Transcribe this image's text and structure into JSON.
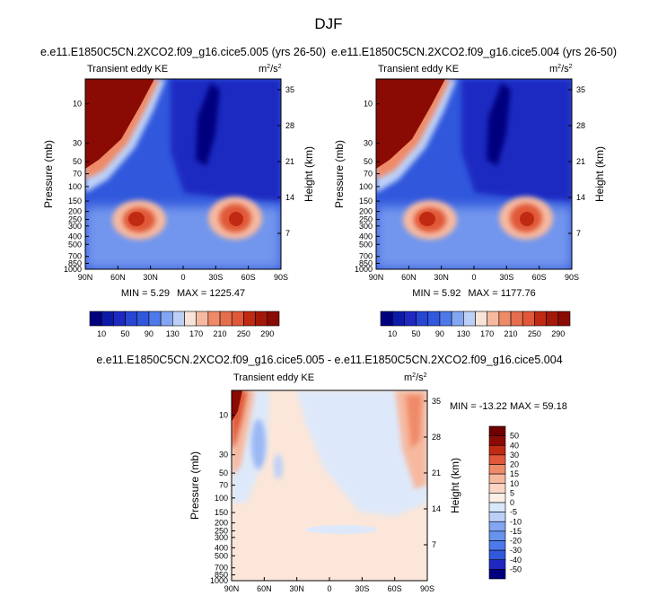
{
  "chart_data": [
    {
      "type": "heatmap",
      "subtitle": "e.e11.E1850C5CN.2XCO2.f09_g16.cice5.005 (yrs 26-50)",
      "left_label": "Transient eddy KE",
      "units_base": "m",
      "units_sup1": "2",
      "units_slash": "/s",
      "units_sup2": "2",
      "ylabel": "Pressure (mb)",
      "ylabel_right": "Height (km)",
      "x_ticks": [
        "90N",
        "60N",
        "30N",
        "0",
        "30S",
        "60S",
        "90S"
      ],
      "x_range": [
        90,
        -90
      ],
      "pressure_ticks": [
        "10",
        "30",
        "50",
        "70",
        "100",
        "150",
        "200",
        "250",
        "300",
        "400",
        "500",
        "700",
        "850",
        "1000"
      ],
      "height_ticks": [
        "35",
        "28",
        "21",
        "14",
        "7"
      ],
      "y_range_mb": [
        5,
        1000
      ],
      "min_label": "MIN =  5.29",
      "max_label": "MAX = 1225.47",
      "min": 5.29,
      "max": 1225.47,
      "colorbar_ticks": [
        "10",
        "50",
        "90",
        "130",
        "170",
        "210",
        "250",
        "290"
      ],
      "colorbar_orientation": "horizontal",
      "features": [
        {
          "kind": "polar night jet maximum",
          "lat": 90,
          "p_mb": 5,
          "value": 300
        },
        {
          "kind": "tropospheric jet maximum",
          "lat": 40,
          "p_mb": 250,
          "value": 250
        },
        {
          "kind": "tropospheric jet maximum",
          "lat": -50,
          "p_mb": 250,
          "value": 270
        }
      ]
    },
    {
      "type": "heatmap",
      "subtitle": "e.e11.E1850C5CN.2XCO2.f09_g16.cice5.004 (yrs 26-50)",
      "left_label": "Transient eddy KE",
      "units_base": "m",
      "units_sup1": "2",
      "units_slash": "/s",
      "units_sup2": "2",
      "ylabel": "Pressure (mb)",
      "ylabel_right": "Height (km)",
      "x_ticks": [
        "90N",
        "60N",
        "30N",
        "0",
        "30S",
        "60S",
        "90S"
      ],
      "x_range": [
        90,
        -90
      ],
      "pressure_ticks": [
        "10",
        "30",
        "50",
        "70",
        "100",
        "150",
        "200",
        "250",
        "300",
        "400",
        "500",
        "700",
        "850",
        "1000"
      ],
      "height_ticks": [
        "35",
        "28",
        "21",
        "14",
        "7"
      ],
      "y_range_mb": [
        5,
        1000
      ],
      "min_label": "MIN =  5.92",
      "max_label": "MAX = 1177.76",
      "min": 5.92,
      "max": 1177.76,
      "colorbar_ticks": [
        "10",
        "50",
        "90",
        "130",
        "170",
        "210",
        "250",
        "290"
      ],
      "colorbar_orientation": "horizontal",
      "features": [
        {
          "kind": "polar night jet maximum",
          "lat": 90,
          "p_mb": 5,
          "value": 300
        },
        {
          "kind": "tropospheric jet maximum",
          "lat": 40,
          "p_mb": 250,
          "value": 250
        },
        {
          "kind": "tropospheric jet maximum",
          "lat": -50,
          "p_mb": 250,
          "value": 260
        }
      ]
    },
    {
      "type": "heatmap",
      "subtitle": "e.e11.E1850C5CN.2XCO2.f09_g16.cice5.005 - e.e11.E1850C5CN.2XCO2.f09_g16.cice5.004",
      "left_label": "Transient eddy KE",
      "units_base": "m",
      "units_sup1": "2",
      "units_slash": "/s",
      "units_sup2": "2",
      "ylabel": "Pressure (mb)",
      "ylabel_right": "Height (km)",
      "x_ticks": [
        "90N",
        "60N",
        "30N",
        "0",
        "30S",
        "60S",
        "90S"
      ],
      "x_range": [
        90,
        -90
      ],
      "pressure_ticks": [
        "10",
        "30",
        "50",
        "70",
        "100",
        "150",
        "200",
        "250",
        "300",
        "400",
        "500",
        "700",
        "850",
        "1000"
      ],
      "height_ticks": [
        "35",
        "28",
        "21",
        "14",
        "7"
      ],
      "y_range_mb": [
        5,
        1000
      ],
      "minmax_label": "MIN = -13.22  MAX =  59.18",
      "min": -13.22,
      "max": 59.18,
      "colorbar_ticks": [
        "50",
        "40",
        "30",
        "20",
        "15",
        "10",
        "5",
        "0",
        "-5",
        "-10",
        "-15",
        "-20",
        "-30",
        "-40",
        "-50"
      ],
      "colorbar_orientation": "vertical",
      "features": [
        {
          "kind": "positive difference maximum",
          "lat": 88,
          "p_mb": 8,
          "value": 50
        },
        {
          "kind": "positive difference",
          "lat": -75,
          "p_mb": 15,
          "value": 15
        },
        {
          "kind": "negative difference",
          "lat": 70,
          "p_mb": 30,
          "value": -10
        }
      ]
    }
  ],
  "page": {
    "title": "DJF",
    "colors": {
      "scale12": [
        "#00007f",
        "#1f29c2",
        "#3158dc",
        "#4d79ea",
        "#83a6f2",
        "#bcd0f7",
        "#f8e3d8",
        "#f6b9a0",
        "#ef8a68",
        "#e05839",
        "#c02a12",
        "#8a0b04",
        "#6e0000"
      ],
      "diff16": [
        "#6e0000",
        "#8a0b04",
        "#c02a12",
        "#e05839",
        "#ef8a68",
        "#f6b9a0",
        "#fbd5c4",
        "#fdeee6",
        "#d8e7fa",
        "#bcd0f7",
        "#83a6f2",
        "#6792ee",
        "#4d79ea",
        "#3158dc",
        "#1f29c2",
        "#00007f"
      ]
    }
  }
}
